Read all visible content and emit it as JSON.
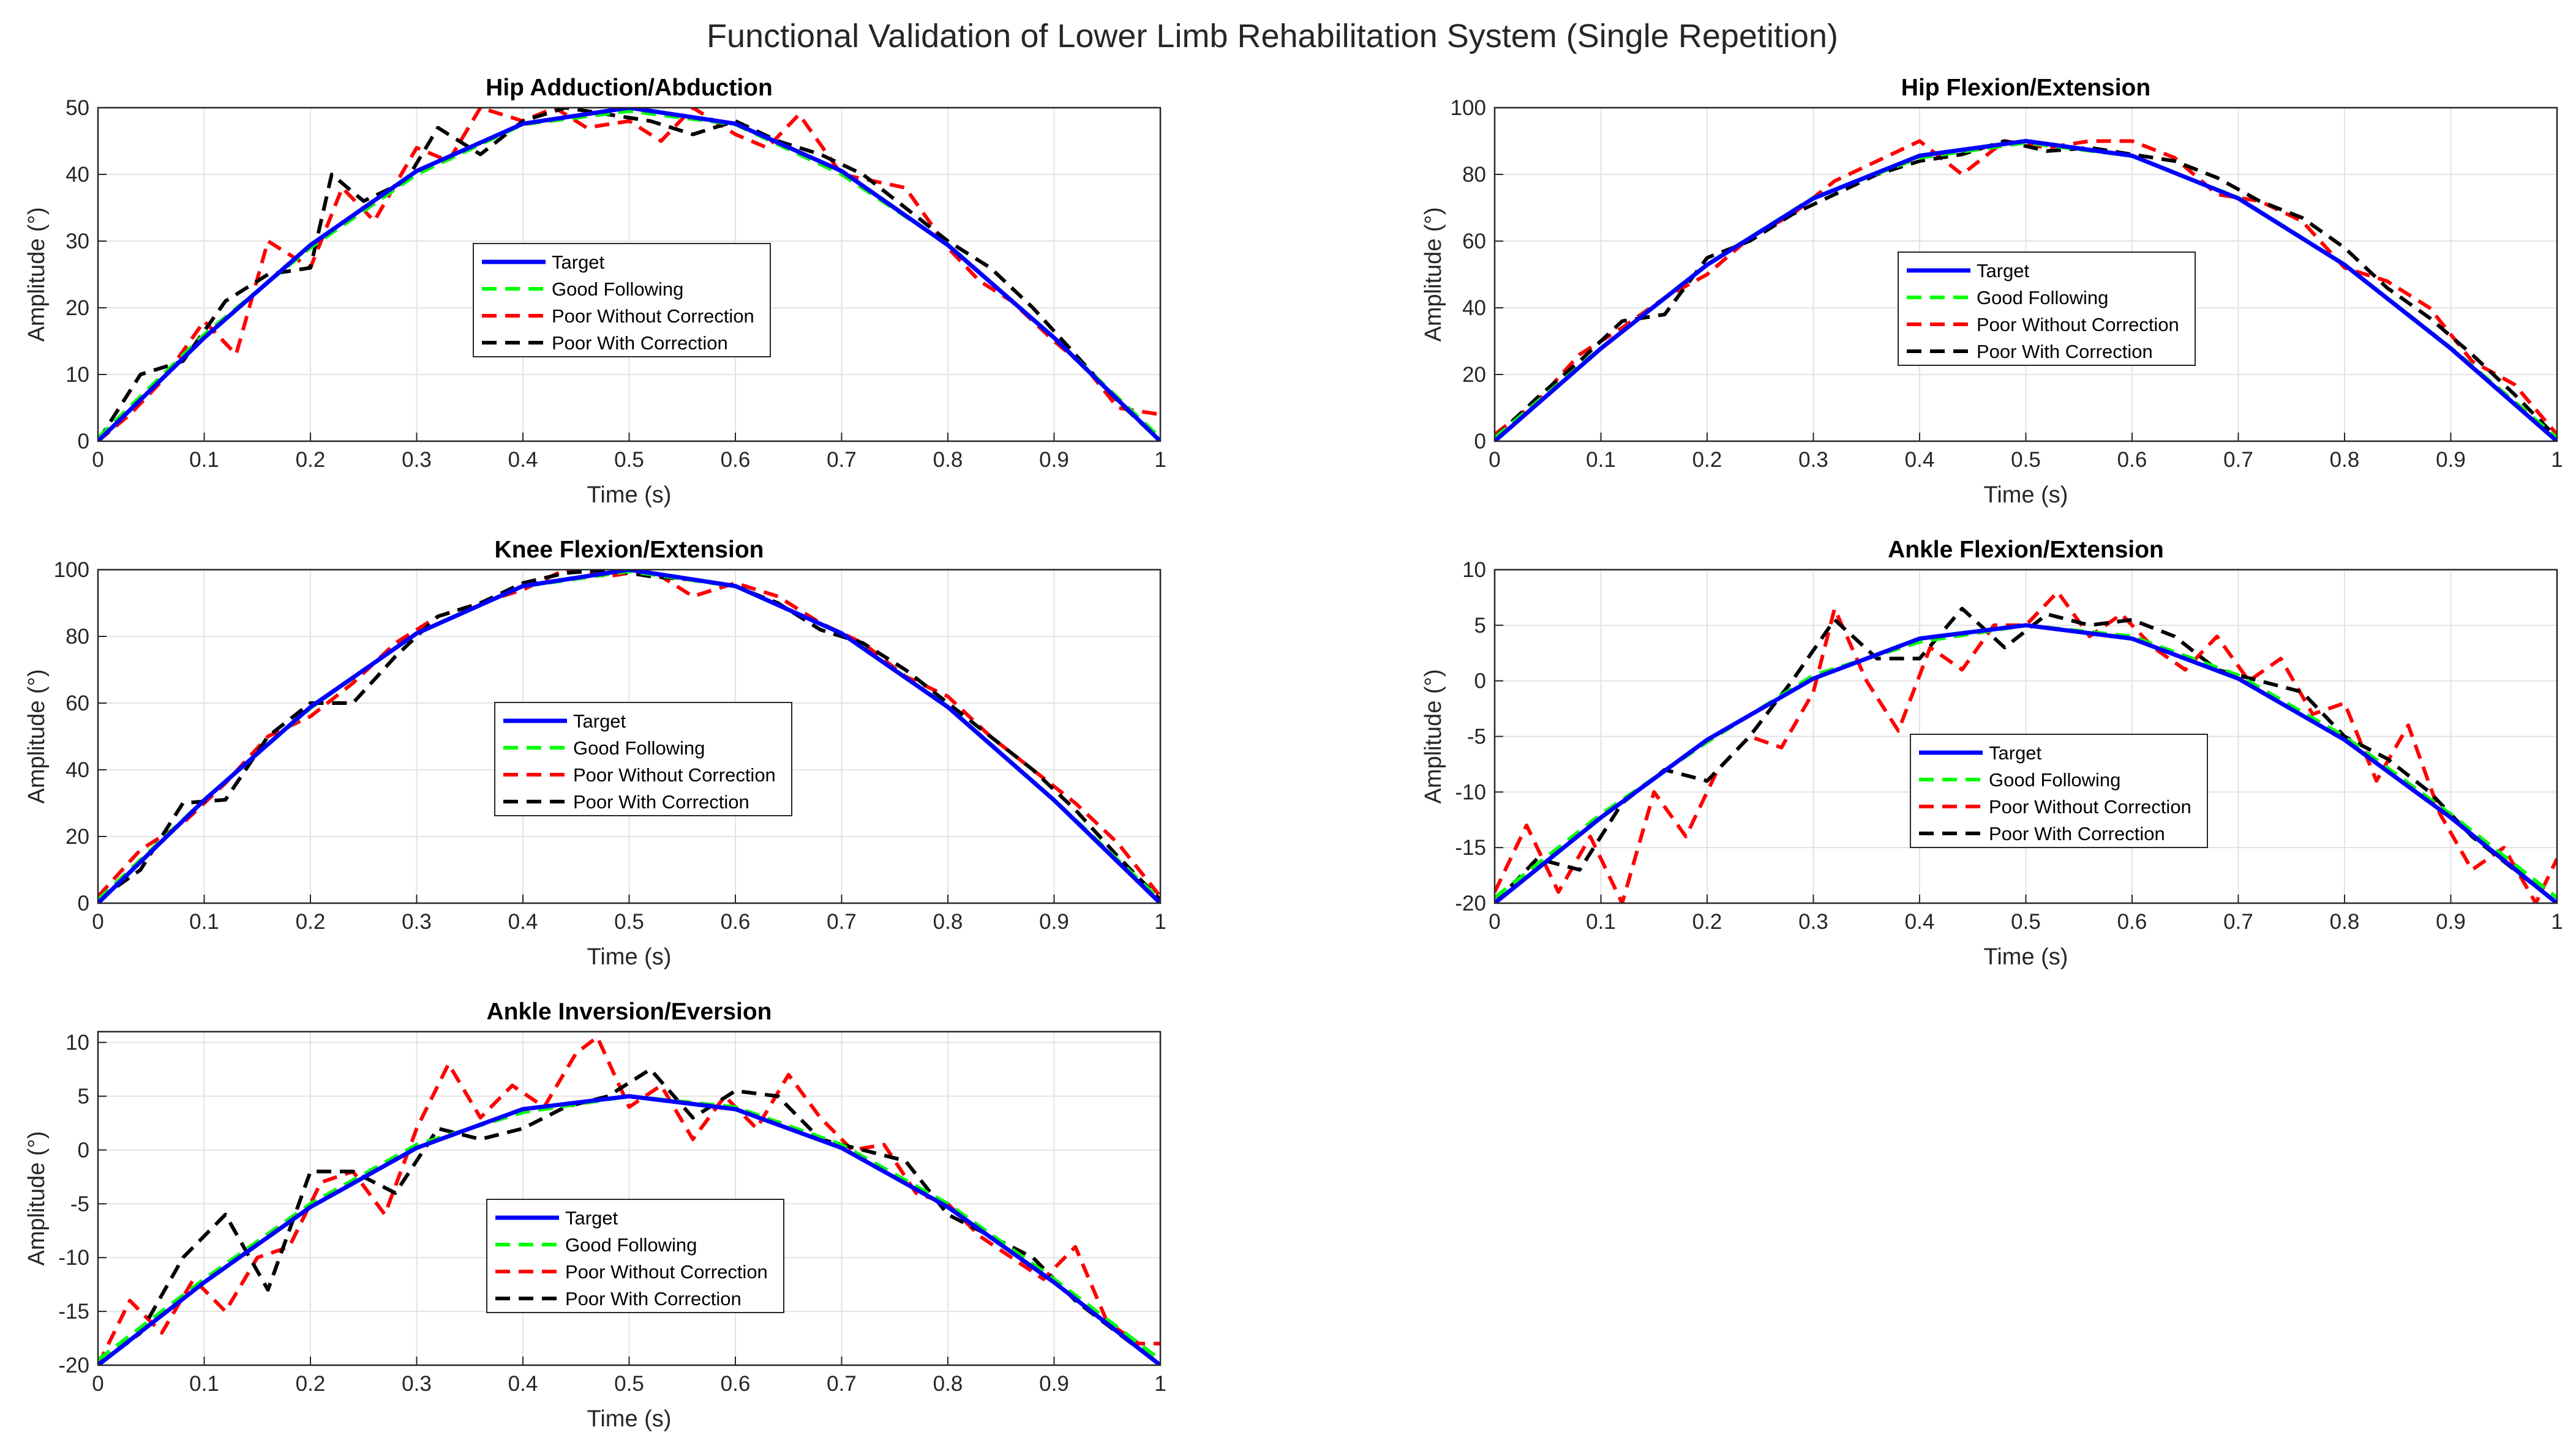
{
  "figure": {
    "title": "Functional Validation of Lower Limb Rehabilitation System (Single Repetition)"
  },
  "legend_entries": [
    "Target",
    "Good Following",
    "Poor Without Correction",
    "Poor With Correction"
  ],
  "colors": {
    "target": "#0000ff",
    "good": "#00ff00",
    "poor_without": "#ff0000",
    "poor_with": "#000000",
    "grid": "#e3e3e3",
    "axis": "#262626"
  },
  "chart_data": [
    {
      "type": "line",
      "title": "Hip Adduction/Abduction",
      "xlabel": "Time (s)",
      "ylabel": "Amplitude (°)",
      "xlim": [
        0,
        1
      ],
      "ylim": [
        0,
        50
      ],
      "xticks": [
        "0",
        "0.1",
        "0.2",
        "0.3",
        "0.4",
        "0.5",
        "0.6",
        "0.7",
        "0.8",
        "0.9",
        "1"
      ],
      "yticks": [
        "0",
        "10",
        "20",
        "30",
        "40",
        "50"
      ],
      "legend_position": "center-left",
      "series": [
        {
          "name": "Target",
          "style": "solid",
          "x": [
            0,
            0.1,
            0.2,
            0.3,
            0.4,
            0.5,
            0.6,
            0.7,
            0.8,
            0.9,
            1
          ],
          "y": [
            0,
            15.5,
            29.4,
            40.5,
            47.6,
            50,
            47.6,
            40.5,
            29.4,
            15.5,
            0
          ]
        },
        {
          "name": "Good Following",
          "style": "dashed",
          "x": [
            0,
            0.1,
            0.2,
            0.3,
            0.4,
            0.5,
            0.6,
            0.7,
            0.8,
            0.9,
            1
          ],
          "y": [
            0.5,
            16,
            29,
            40,
            47.5,
            49.5,
            47.5,
            40,
            29.5,
            15.5,
            0.5
          ]
        },
        {
          "name": "Poor Without Correction",
          "style": "dashed",
          "x": [
            0,
            0.03,
            0.06,
            0.1,
            0.13,
            0.16,
            0.2,
            0.23,
            0.26,
            0.3,
            0.33,
            0.36,
            0.4,
            0.43,
            0.46,
            0.5,
            0.53,
            0.56,
            0.6,
            0.63,
            0.66,
            0.7,
            0.73,
            0.76,
            0.8,
            0.83,
            0.86,
            0.9,
            0.93,
            0.96,
            1
          ],
          "y": [
            0,
            4,
            9,
            18,
            13,
            30,
            26,
            38,
            33,
            44,
            42,
            50,
            48,
            50,
            47,
            48,
            45,
            50,
            46,
            44,
            49,
            40,
            39,
            38,
            29,
            24,
            21,
            15,
            11,
            5,
            4
          ]
        },
        {
          "name": "Poor With Correction",
          "style": "dashed",
          "x": [
            0,
            0.04,
            0.08,
            0.12,
            0.16,
            0.2,
            0.22,
            0.25,
            0.29,
            0.32,
            0.36,
            0.4,
            0.44,
            0.48,
            0.52,
            0.56,
            0.6,
            0.64,
            0.68,
            0.72,
            0.76,
            0.8,
            0.84,
            0.88,
            0.92,
            0.96,
            1
          ],
          "y": [
            0,
            10,
            12,
            21,
            25,
            26,
            40,
            36,
            39,
            47,
            43,
            48,
            50,
            49,
            48,
            46,
            48,
            45,
            43,
            40,
            35,
            30,
            26,
            20,
            13,
            6,
            0
          ]
        }
      ]
    },
    {
      "type": "line",
      "title": "Hip Flexion/Extension",
      "xlabel": "Time (s)",
      "ylabel": "Amplitude (°)",
      "xlim": [
        0,
        1
      ],
      "ylim": [
        0,
        100
      ],
      "xticks": [
        "0",
        "0.1",
        "0.2",
        "0.3",
        "0.4",
        "0.5",
        "0.6",
        "0.7",
        "0.8",
        "0.9",
        "1"
      ],
      "yticks": [
        "0",
        "20",
        "40",
        "60",
        "80",
        "100"
      ],
      "legend_position": "center",
      "series": [
        {
          "name": "Target",
          "style": "solid",
          "x": [
            0,
            0.1,
            0.2,
            0.3,
            0.4,
            0.5,
            0.6,
            0.7,
            0.8,
            0.9,
            1
          ],
          "y": [
            0,
            27.8,
            52.9,
            72.8,
            85.6,
            90,
            85.6,
            72.8,
            52.9,
            27.8,
            0
          ]
        },
        {
          "name": "Good Following",
          "style": "dashed",
          "x": [
            0,
            0.1,
            0.2,
            0.3,
            0.4,
            0.5,
            0.6,
            0.7,
            0.8,
            0.9,
            1
          ],
          "y": [
            1,
            28,
            53,
            73,
            85,
            89.5,
            85.5,
            73,
            53,
            28,
            1
          ]
        },
        {
          "name": "Poor Without Correction",
          "style": "dashed",
          "x": [
            0,
            0.04,
            0.08,
            0.12,
            0.16,
            0.2,
            0.24,
            0.28,
            0.32,
            0.36,
            0.4,
            0.44,
            0.48,
            0.52,
            0.56,
            0.6,
            0.64,
            0.68,
            0.72,
            0.76,
            0.8,
            0.84,
            0.88,
            0.92,
            0.96,
            1
          ],
          "y": [
            2,
            12,
            26,
            34,
            43,
            50,
            61,
            68,
            78,
            84,
            90,
            80,
            90,
            88,
            90,
            90,
            85,
            74,
            72,
            66,
            52,
            48,
            40,
            24,
            17,
            2
          ]
        },
        {
          "name": "Poor With Correction",
          "style": "dashed",
          "x": [
            0,
            0.04,
            0.08,
            0.12,
            0.16,
            0.2,
            0.24,
            0.28,
            0.32,
            0.36,
            0.4,
            0.44,
            0.48,
            0.52,
            0.56,
            0.6,
            0.64,
            0.68,
            0.72,
            0.76,
            0.8,
            0.84,
            0.88,
            0.92,
            0.96,
            1
          ],
          "y": [
            1,
            13,
            24,
            36,
            38,
            55,
            60,
            68,
            74,
            80,
            84,
            86,
            90,
            87,
            88,
            86,
            84,
            79,
            72,
            67,
            58,
            46,
            37,
            26,
            14,
            1
          ]
        }
      ]
    },
    {
      "type": "line",
      "title": "Knee Flexion/Extension",
      "xlabel": "Time (s)",
      "ylabel": "Amplitude (°)",
      "xlim": [
        0,
        1
      ],
      "ylim": [
        0,
        100
      ],
      "xticks": [
        "0",
        "0.1",
        "0.2",
        "0.3",
        "0.4",
        "0.5",
        "0.6",
        "0.7",
        "0.8",
        "0.9",
        "1"
      ],
      "yticks": [
        "0",
        "20",
        "40",
        "60",
        "80",
        "100"
      ],
      "legend_position": "center",
      "series": [
        {
          "name": "Target",
          "style": "solid",
          "x": [
            0,
            0.1,
            0.2,
            0.3,
            0.4,
            0.5,
            0.6,
            0.7,
            0.8,
            0.9,
            1
          ],
          "y": [
            0,
            30.9,
            58.8,
            80.9,
            95.1,
            100,
            95.1,
            80.9,
            58.8,
            30.9,
            0
          ]
        },
        {
          "name": "Good Following",
          "style": "dashed",
          "x": [
            0,
            0.1,
            0.2,
            0.3,
            0.4,
            0.5,
            0.6,
            0.7,
            0.8,
            0.9,
            1
          ],
          "y": [
            1,
            31,
            58.5,
            81,
            95,
            99.5,
            95,
            81,
            59,
            31,
            1
          ]
        },
        {
          "name": "Poor Without Correction",
          "style": "dashed",
          "x": [
            0,
            0.04,
            0.08,
            0.12,
            0.16,
            0.2,
            0.24,
            0.28,
            0.32,
            0.36,
            0.4,
            0.44,
            0.48,
            0.52,
            0.56,
            0.6,
            0.64,
            0.68,
            0.72,
            0.76,
            0.8,
            0.84,
            0.88,
            0.92,
            0.96,
            1
          ],
          "y": [
            2,
            16,
            24,
            36,
            50,
            56,
            66,
            78,
            86,
            90,
            94,
            100,
            98,
            100,
            92,
            96,
            92,
            84,
            78,
            68,
            62,
            50,
            40,
            30,
            18,
            2
          ]
        },
        {
          "name": "Poor With Correction",
          "style": "dashed",
          "x": [
            0,
            0.04,
            0.08,
            0.12,
            0.16,
            0.2,
            0.24,
            0.28,
            0.32,
            0.36,
            0.4,
            0.44,
            0.48,
            0.52,
            0.56,
            0.6,
            0.64,
            0.68,
            0.72,
            0.76,
            0.8,
            0.84,
            0.88,
            0.92,
            0.96,
            1
          ],
          "y": [
            1,
            10,
            30,
            31,
            50,
            60,
            60,
            74,
            86,
            90,
            96,
            99,
            100,
            98,
            97,
            95,
            90,
            82,
            78,
            70,
            60,
            50,
            40,
            28,
            14,
            1
          ]
        }
      ]
    },
    {
      "type": "line",
      "title": "Ankle Flexion/Extension",
      "xlabel": "Time (s)",
      "ylabel": "Amplitude (°)",
      "xlim": [
        0,
        1
      ],
      "ylim": [
        -20,
        10
      ],
      "xticks": [
        "0",
        "0.1",
        "0.2",
        "0.3",
        "0.4",
        "0.5",
        "0.6",
        "0.7",
        "0.8",
        "0.9",
        "1"
      ],
      "yticks": [
        "-20",
        "-15",
        "-10",
        "-5",
        "0",
        "5",
        "10"
      ],
      "legend_position": "center",
      "series": [
        {
          "name": "Target",
          "style": "solid",
          "x": [
            0,
            0.1,
            0.2,
            0.3,
            0.4,
            0.5,
            0.6,
            0.7,
            0.8,
            0.9,
            1
          ],
          "y": [
            -20,
            -12.3,
            -5.3,
            0.2,
            3.8,
            5,
            3.8,
            0.2,
            -5.3,
            -12.3,
            -20
          ]
        },
        {
          "name": "Good Following",
          "style": "dashed",
          "x": [
            0,
            0.1,
            0.2,
            0.3,
            0.4,
            0.5,
            0.6,
            0.7,
            0.8,
            0.9,
            1
          ],
          "y": [
            -19.5,
            -12,
            -5.5,
            0.5,
            3.5,
            5,
            4,
            0.5,
            -5,
            -12,
            -19.5
          ]
        },
        {
          "name": "Poor Without Correction",
          "style": "dashed",
          "x": [
            0,
            0.03,
            0.06,
            0.09,
            0.12,
            0.15,
            0.18,
            0.21,
            0.24,
            0.27,
            0.3,
            0.32,
            0.35,
            0.38,
            0.41,
            0.44,
            0.47,
            0.5,
            0.53,
            0.56,
            0.59,
            0.62,
            0.65,
            0.68,
            0.71,
            0.74,
            0.77,
            0.8,
            0.83,
            0.86,
            0.89,
            0.92,
            0.95,
            0.98,
            1
          ],
          "y": [
            -19,
            -13,
            -19,
            -14,
            -20,
            -10,
            -14,
            -8,
            -5,
            -6,
            -1,
            6.5,
            0,
            -4.5,
            3,
            1,
            5,
            5,
            8,
            4,
            6,
            3,
            1,
            4,
            0,
            2,
            -3,
            -2,
            -9,
            -4,
            -12,
            -17,
            -15,
            -20,
            -16
          ]
        },
        {
          "name": "Poor With Correction",
          "style": "dashed",
          "x": [
            0,
            0.04,
            0.08,
            0.12,
            0.16,
            0.2,
            0.24,
            0.28,
            0.32,
            0.36,
            0.4,
            0.44,
            0.48,
            0.52,
            0.56,
            0.6,
            0.64,
            0.68,
            0.72,
            0.76,
            0.8,
            0.84,
            0.88,
            0.92,
            0.96,
            1
          ],
          "y": [
            -20,
            -16,
            -17,
            -11,
            -8,
            -9,
            -5,
            0,
            5.5,
            2,
            2,
            6.5,
            3,
            6,
            5,
            5.5,
            4,
            1,
            0,
            -1,
            -5,
            -7,
            -10,
            -14,
            -17,
            -20
          ]
        }
      ]
    },
    {
      "type": "line",
      "title": "Ankle Inversion/Eversion",
      "xlabel": "Time (s)",
      "ylabel": "Amplitude (°)",
      "xlim": [
        0,
        1
      ],
      "ylim": [
        -20,
        11
      ],
      "xticks": [
        "0",
        "0.1",
        "0.2",
        "0.3",
        "0.4",
        "0.5",
        "0.6",
        "0.7",
        "0.8",
        "0.9",
        "1"
      ],
      "yticks": [
        "-20",
        "-15",
        "-10",
        "-5",
        "0",
        "5",
        "10"
      ],
      "legend_position": "center",
      "series": [
        {
          "name": "Target",
          "style": "solid",
          "x": [
            0,
            0.1,
            0.2,
            0.3,
            0.4,
            0.5,
            0.6,
            0.7,
            0.8,
            0.9,
            1
          ],
          "y": [
            -20,
            -12.3,
            -5.3,
            0.2,
            3.8,
            5,
            3.8,
            0.2,
            -5.3,
            -12.3,
            -20
          ]
        },
        {
          "name": "Good Following",
          "style": "dashed",
          "x": [
            0,
            0.1,
            0.2,
            0.3,
            0.4,
            0.5,
            0.6,
            0.7,
            0.8,
            0.9,
            1
          ],
          "y": [
            -19.5,
            -12,
            -5,
            0.5,
            3.5,
            5,
            4,
            0.5,
            -5,
            -12,
            -19.5
          ]
        },
        {
          "name": "Poor Without Correction",
          "style": "dashed",
          "x": [
            0,
            0.03,
            0.06,
            0.09,
            0.12,
            0.15,
            0.18,
            0.21,
            0.24,
            0.27,
            0.3,
            0.33,
            0.36,
            0.39,
            0.42,
            0.45,
            0.47,
            0.5,
            0.53,
            0.56,
            0.59,
            0.62,
            0.65,
            0.68,
            0.71,
            0.74,
            0.77,
            0.8,
            0.83,
            0.86,
            0.89,
            0.92,
            0.95,
            0.98,
            1
          ],
          "y": [
            -20,
            -14,
            -17,
            -12,
            -15,
            -10,
            -9,
            -3,
            -2,
            -6,
            2,
            8,
            3,
            6,
            4,
            9,
            10.5,
            4,
            6,
            1,
            5,
            2,
            7,
            3,
            0,
            0.5,
            -4,
            -5,
            -8,
            -10,
            -12,
            -9,
            -16,
            -18,
            -18
          ]
        },
        {
          "name": "Poor With Correction",
          "style": "dashed",
          "x": [
            0,
            0.04,
            0.08,
            0.12,
            0.16,
            0.2,
            0.24,
            0.28,
            0.32,
            0.36,
            0.4,
            0.44,
            0.48,
            0.52,
            0.56,
            0.6,
            0.64,
            0.68,
            0.72,
            0.76,
            0.8,
            0.84,
            0.88,
            0.92,
            0.96,
            1
          ],
          "y": [
            -20,
            -17,
            -10,
            -6,
            -13,
            -2,
            -2,
            -4,
            2,
            1,
            2,
            4,
            5,
            7.5,
            3,
            5.5,
            5,
            1,
            0,
            -1,
            -6,
            -8,
            -10,
            -14,
            -17,
            -20
          ]
        }
      ]
    }
  ]
}
